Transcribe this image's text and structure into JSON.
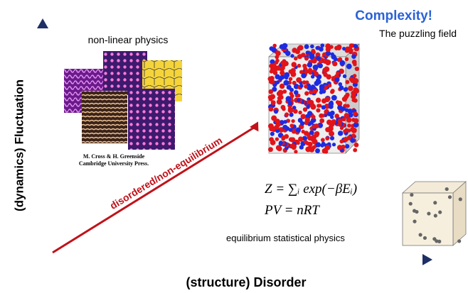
{
  "header": {
    "title": "Complexity!",
    "subtitle": "The puzzling field"
  },
  "axes": {
    "y_label": "(dynamics) Fluctuation",
    "x_label": "(structure) Disorder"
  },
  "nonlinear": {
    "label": "non-linear physics",
    "credit_line1": "M. Cross & H. Greenside",
    "credit_line2": "Cambridge University Press."
  },
  "arrow": {
    "label": "disordered/non-equilibrium"
  },
  "equilibrium": {
    "formula1": "Z = ∑ᵢ exp(−βEᵢ)",
    "formula2": "PV = nRT",
    "label": "equilibrium statistical physics"
  }
}
